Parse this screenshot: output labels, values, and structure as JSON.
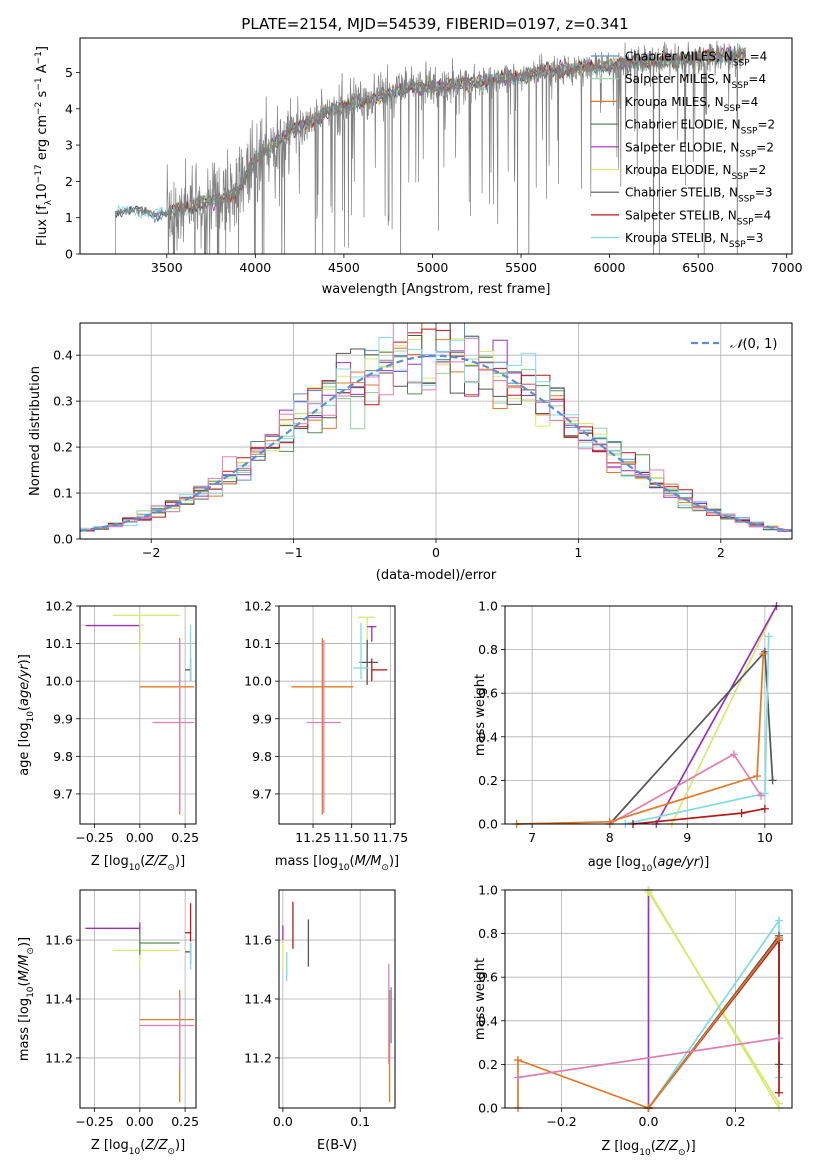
{
  "figure": {
    "title": "PLATE=2154, MJD=54539, FIBERID=0197, z=0.341"
  },
  "colors": {
    "chabrier_miles": "#5b8fd4",
    "salpeter_miles": "#8fd4a0",
    "kroupa_miles": "#e07b2a",
    "chabrier_elodie": "#5a8a5a",
    "salpeter_elodie": "#9b30b8",
    "kroupa_elodie": "#d8e870",
    "chabrier_stelib": "#555555",
    "salpeter_stelib": "#b81818",
    "kroupa_stelib": "#80dce0",
    "pink": "#e080b0",
    "spectrum": "#808080",
    "normal": "#5b8fd4",
    "grid": "#b0b0b0"
  },
  "chart_data": [
    {
      "id": "spectrum",
      "type": "line",
      "xlabel": "wavelength [Angstrom, rest frame]",
      "ylabel": "Flux [f",
      "ylabel_parts": [
        "Flux [f",
        "λ",
        "10",
        "−17",
        " erg cm",
        "−2",
        " s",
        "−1",
        " A",
        "−1",
        "]"
      ],
      "xlim": [
        3010,
        7030
      ],
      "ylim": [
        0,
        5.95
      ],
      "xticks": [
        3500,
        4000,
        4500,
        5000,
        5500,
        6000,
        6500,
        7000
      ],
      "yticks": [
        0,
        1,
        2,
        3,
        4,
        5
      ],
      "grid": false,
      "legend_position": "upper-right",
      "legend": [
        {
          "label": "Chabrier MILES, N",
          "sub": "SSP",
          "suffix": "=4",
          "color_key": "chabrier_miles"
        },
        {
          "label": "Salpeter MILES, N",
          "sub": "SSP",
          "suffix": "=4",
          "color_key": "salpeter_miles"
        },
        {
          "label": "Kroupa MILES, N",
          "sub": "SSP",
          "suffix": "=4",
          "color_key": "kroupa_miles"
        },
        {
          "label": "Chabrier ELODIE, N",
          "sub": "SSP",
          "suffix": "=2",
          "color_key": "chabrier_elodie"
        },
        {
          "label": "Salpeter ELODIE, N",
          "sub": "SSP",
          "suffix": "=2",
          "color_key": "salpeter_elodie"
        },
        {
          "label": "Kroupa ELODIE, N",
          "sub": "SSP",
          "suffix": "=2",
          "color_key": "kroupa_elodie"
        },
        {
          "label": "Chabrier STELIB, N",
          "sub": "SSP",
          "suffix": "=3",
          "color_key": "chabrier_stelib"
        },
        {
          "label": "Salpeter STELIB, N",
          "sub": "SSP",
          "suffix": "=4",
          "color_key": "salpeter_stelib"
        },
        {
          "label": "Kroupa STELIB, N",
          "sub": "SSP",
          "suffix": "=3",
          "color_key": "kroupa_stelib"
        }
      ],
      "continuum": [
        [
          3210,
          1.15
        ],
        [
          3300,
          1.2
        ],
        [
          3400,
          1.15
        ],
        [
          3500,
          1.1
        ],
        [
          3600,
          1.3
        ],
        [
          3700,
          1.4
        ],
        [
          3800,
          1.5
        ],
        [
          3900,
          1.7
        ],
        [
          4000,
          2.6
        ],
        [
          4100,
          3.0
        ],
        [
          4200,
          3.4
        ],
        [
          4300,
          3.6
        ],
        [
          4400,
          3.9
        ],
        [
          4500,
          4.1
        ],
        [
          4600,
          4.2
        ],
        [
          4700,
          4.3
        ],
        [
          4800,
          4.5
        ],
        [
          4900,
          4.6
        ],
        [
          5000,
          4.6
        ],
        [
          5100,
          4.65
        ],
        [
          5200,
          4.7
        ],
        [
          5300,
          4.75
        ],
        [
          5400,
          4.85
        ],
        [
          5500,
          4.9
        ],
        [
          5600,
          5.0
        ],
        [
          5700,
          5.05
        ],
        [
          5800,
          5.1
        ],
        [
          5900,
          5.15
        ],
        [
          6000,
          5.2
        ],
        [
          6100,
          5.25
        ],
        [
          6200,
          5.3
        ],
        [
          6300,
          5.3
        ],
        [
          6400,
          5.35
        ],
        [
          6500,
          5.4
        ],
        [
          6600,
          5.45
        ],
        [
          6700,
          5.5
        ],
        [
          6770,
          5.5
        ]
      ],
      "noise_start": 3500,
      "x_min_data": 3210,
      "x_max_data": 6770
    },
    {
      "id": "residuals",
      "type": "histogram",
      "xlabel": "(data-model)/error",
      "ylabel": "Normed distribution",
      "xlim": [
        -2.5,
        2.5
      ],
      "ylim": [
        0,
        0.47
      ],
      "xticks": [
        -2,
        -1,
        0,
        1,
        2
      ],
      "yticks": [
        0.0,
        0.1,
        0.2,
        0.3,
        0.4
      ],
      "grid": true,
      "legend_position": "upper-right",
      "legend": [
        {
          "label": "(0, 1)",
          "prefix": "𝒩",
          "color_key": "normal",
          "style": "dashed"
        }
      ],
      "bin_width": 0.1,
      "series_color_keys": [
        "chabrier_miles",
        "salpeter_miles",
        "kroupa_miles",
        "chabrier_elodie",
        "salpeter_elodie",
        "kroupa_elodie",
        "chabrier_stelib",
        "salpeter_stelib",
        "kroupa_stelib",
        "pink"
      ]
    },
    {
      "id": "age-vs-z",
      "type": "scatter",
      "xlabel": "Z [log10(Z/Z⊙)]",
      "ylabel": "age  [log10(age/yr)]",
      "xlim": [
        -0.33,
        0.31
      ],
      "ylim": [
        9.62,
        10.2
      ],
      "xticks": [
        -0.25,
        0.0,
        0.25
      ],
      "yticks": [
        9.7,
        9.8,
        9.9,
        10.0,
        10.1,
        10.2
      ],
      "grid": true,
      "points": [
        {
          "x": 0.0,
          "y": 10.148,
          "xerr": [
            0.3,
            0.0
          ],
          "yerr": [
            0.05,
            0.0
          ],
          "color_key": "salpeter_elodie"
        },
        {
          "x": 0.0,
          "y": 10.175,
          "xerr": [
            0.15,
            0.22
          ],
          "yerr": [
            0.1,
            0.0
          ],
          "color_key": "kroupa_elodie"
        },
        {
          "x": 0.22,
          "y": 9.985,
          "xerr": [
            0.22,
            0.08
          ],
          "yerr": [
            0.34,
            0.13
          ],
          "color_key": "kroupa_miles"
        },
        {
          "x": 0.22,
          "y": 9.89,
          "xerr": [
            0.15,
            0.08
          ],
          "yerr": [
            0.24,
            0.22
          ],
          "color_key": "pink"
        },
        {
          "x": 0.28,
          "y": 10.03,
          "xerr": [
            0.03,
            0.0
          ],
          "yerr": [
            0.03,
            0.03
          ],
          "color_key": "chabrier_stelib"
        },
        {
          "x": 0.28,
          "y": 10.03,
          "xerr": [
            0.0,
            0.0
          ],
          "yerr": [
            0.03,
            0.12
          ],
          "color_key": "kroupa_stelib"
        }
      ]
    },
    {
      "id": "age-vs-mass",
      "type": "scatter",
      "xlabel": "mass [log10(M/M⊙)]",
      "ylabel": "",
      "xlim": [
        11.03,
        11.78
      ],
      "ylim": [
        9.62,
        10.2
      ],
      "xticks": [
        11.25,
        11.5,
        11.75
      ],
      "yticks": [
        9.7,
        9.8,
        9.9,
        10.0,
        10.1,
        10.2
      ],
      "grid": true,
      "points": [
        {
          "x": 11.31,
          "y": 9.985,
          "xerr": [
            0.2,
            0.2
          ],
          "yerr": [
            0.34,
            0.13
          ],
          "color_key": "kroupa_miles"
        },
        {
          "x": 11.32,
          "y": 9.89,
          "xerr": [
            0.11,
            0.11
          ],
          "yerr": [
            0.24,
            0.22
          ],
          "color_key": "pink"
        },
        {
          "x": 11.6,
          "y": 10.17,
          "xerr": [
            0.06,
            0.05
          ],
          "yerr": [
            0.1,
            0.0
          ],
          "color_key": "kroupa_elodie"
        },
        {
          "x": 11.63,
          "y": 10.145,
          "xerr": [
            0.03,
            0.03
          ],
          "yerr": [
            0.04,
            0.0
          ],
          "color_key": "salpeter_elodie"
        },
        {
          "x": 11.6,
          "y": 10.05,
          "xerr": [
            0.05,
            0.07
          ],
          "yerr": [
            0.06,
            0.06
          ],
          "color_key": "chabrier_stelib"
        },
        {
          "x": 11.63,
          "y": 10.03,
          "xerr": [
            0.0,
            0.1
          ],
          "yerr": [
            0.03,
            0.03
          ],
          "color_key": "salpeter_stelib"
        },
        {
          "x": 11.56,
          "y": 10.035,
          "xerr": [
            0.05,
            0.05
          ],
          "yerr": [
            0.03,
            0.12
          ],
          "color_key": "kroupa_stelib"
        }
      ]
    },
    {
      "id": "mass-weight-vs-age",
      "type": "line",
      "xlabel": "age  [log10(age/yr)]",
      "ylabel": "mass weight",
      "xlim": [
        6.65,
        10.35
      ],
      "ylim": [
        0,
        1.0
      ],
      "xticks": [
        7,
        8,
        9,
        10
      ],
      "yticks": [
        0.0,
        0.2,
        0.4,
        0.6,
        0.8,
        1.0
      ],
      "grid": true,
      "series": [
        {
          "color_key": "kroupa_elodie",
          "x": [
            8.8,
            10.15
          ],
          "y": [
            0.0,
            1.0
          ]
        },
        {
          "color_key": "salpeter_elodie",
          "x": [
            8.6,
            10.15
          ],
          "y": [
            0.0,
            1.0
          ]
        },
        {
          "color_key": "chabrier_stelib",
          "x": [
            8.0,
            10.0,
            10.1
          ],
          "y": [
            0.0,
            0.79,
            0.2
          ]
        },
        {
          "color_key": "kroupa_stelib",
          "x": [
            8.2,
            10.0,
            10.05
          ],
          "y": [
            0.0,
            0.14,
            0.86
          ]
        },
        {
          "color_key": "pink",
          "x": [
            8.0,
            9.6,
            9.95
          ],
          "y": [
            0.0,
            0.32,
            0.13
          ]
        },
        {
          "color_key": "kroupa_miles",
          "x": [
            6.8,
            8.0,
            9.9,
            9.98
          ],
          "y": [
            0.0,
            0.01,
            0.22,
            0.78
          ]
        },
        {
          "color_key": "salpeter_stelib",
          "x": [
            8.3,
            9.7,
            10.0
          ],
          "y": [
            0.0,
            0.05,
            0.07
          ]
        }
      ]
    },
    {
      "id": "mass-vs-z",
      "type": "scatter",
      "xlabel": "Z [log10(Z/Z⊙)]",
      "ylabel": "mass [log10(M/M⊙)]",
      "xlim": [
        -0.33,
        0.31
      ],
      "ylim": [
        11.03,
        11.77
      ],
      "xticks": [
        -0.25,
        0.0,
        0.25
      ],
      "yticks": [
        11.2,
        11.4,
        11.6
      ],
      "grid": true,
      "points": [
        {
          "x": 0.0,
          "y": 11.64,
          "xerr": [
            0.3,
            0.0
          ],
          "yerr": [
            0.02,
            0.02
          ],
          "color_key": "salpeter_elodie"
        },
        {
          "x": 0.0,
          "y": 11.565,
          "xerr": [
            0.15,
            0.22
          ],
          "yerr": [
            0.06,
            0.06
          ],
          "color_key": "kroupa_elodie"
        },
        {
          "x": 0.0,
          "y": 11.59,
          "xerr": [
            0.0,
            0.22
          ],
          "yerr": [
            0.04,
            0.04
          ],
          "color_key": "chabrier_elodie"
        },
        {
          "x": 0.22,
          "y": 11.33,
          "xerr": [
            0.22,
            0.08
          ],
          "yerr": [
            0.28,
            0.1
          ],
          "color_key": "kroupa_miles"
        },
        {
          "x": 0.22,
          "y": 11.31,
          "xerr": [
            0.22,
            0.08
          ],
          "yerr": [
            0.15,
            0.1
          ],
          "color_key": "pink"
        },
        {
          "x": 0.28,
          "y": 11.625,
          "xerr": [
            0.03,
            0.0
          ],
          "yerr": [
            0.03,
            0.1
          ],
          "color_key": "salpeter_stelib"
        },
        {
          "x": 0.28,
          "y": 11.56,
          "xerr": [
            0.03,
            0.0
          ],
          "yerr": [
            0.04,
            0.03
          ],
          "color_key": "chabrier_stelib"
        },
        {
          "x": 0.28,
          "y": 11.55,
          "xerr": [
            0.0,
            0.0
          ],
          "yerr": [
            0.05,
            0.04
          ],
          "color_key": "kroupa_stelib"
        }
      ]
    },
    {
      "id": "mass-vs-ebv",
      "type": "scatter",
      "xlabel": "E(B-V)",
      "ylabel": "",
      "xlim": [
        -0.005,
        0.145
      ],
      "ylim": [
        11.03,
        11.77
      ],
      "xticks": [
        0.0,
        0.1
      ],
      "yticks": [
        11.2,
        11.4,
        11.6
      ],
      "grid": true,
      "points": [
        {
          "x": 0.0,
          "y": 11.62,
          "xerr": [
            0,
            0
          ],
          "yerr": [
            0.03,
            0.03
          ],
          "color_key": "salpeter_elodie"
        },
        {
          "x": 0.0,
          "y": 11.55,
          "xerr": [
            0,
            0
          ],
          "yerr": [
            0.05,
            0.05
          ],
          "color_key": "kroupa_elodie"
        },
        {
          "x": 0.005,
          "y": 11.51,
          "xerr": [
            0,
            0
          ],
          "yerr": [
            0.05,
            0.05
          ],
          "color_key": "kroupa_stelib"
        },
        {
          "x": 0.013,
          "y": 11.65,
          "xerr": [
            0,
            0
          ],
          "yerr": [
            0.08,
            0.08
          ],
          "color_key": "salpeter_stelib"
        },
        {
          "x": 0.033,
          "y": 11.59,
          "xerr": [
            0,
            0
          ],
          "yerr": [
            0.08,
            0.08
          ],
          "color_key": "chabrier_stelib"
        },
        {
          "x": 0.138,
          "y": 11.33,
          "xerr": [
            0,
            0
          ],
          "yerr": [
            0.28,
            0.1
          ],
          "color_key": "kroupa_miles"
        },
        {
          "x": 0.137,
          "y": 11.35,
          "xerr": [
            0,
            0
          ],
          "yerr": [
            0.17,
            0.17
          ],
          "color_key": "pink"
        },
        {
          "x": 0.14,
          "y": 11.35,
          "xerr": [
            0,
            0
          ],
          "yerr": [
            0.1,
            0.09
          ],
          "color_key": "chabrier_miles"
        }
      ]
    },
    {
      "id": "mass-weight-vs-z",
      "type": "line",
      "xlabel": "Z [log10(Z/Z⊙)]",
      "ylabel": "mass weight",
      "xlim": [
        -0.33,
        0.33
      ],
      "ylim": [
        0,
        1.0
      ],
      "xticks": [
        -0.2,
        0.0,
        0.2
      ],
      "yticks": [
        0.0,
        0.2,
        0.4,
        0.6,
        0.8,
        1.0
      ],
      "grid": true,
      "series": [
        {
          "color_key": "salpeter_elodie",
          "x": [
            0.0,
            0.0
          ],
          "y": [
            0.0,
            1.0
          ]
        },
        {
          "color_key": "kroupa_elodie",
          "x": [
            0.0,
            0.3
          ],
          "y": [
            1.0,
            0.0
          ]
        },
        {
          "color_key": "kroupa_elodie",
          "x": [
            0.0,
            0.3
          ],
          "y": [
            0.99,
            0.02
          ]
        },
        {
          "color_key": "kroupa_stelib",
          "x": [
            0.0,
            0.3,
            0.3
          ],
          "y": [
            0.0,
            0.86,
            0.14
          ]
        },
        {
          "color_key": "chabrier_stelib",
          "x": [
            0.0,
            0.3,
            0.3
          ],
          "y": [
            0.0,
            0.79,
            0.2
          ]
        },
        {
          "color_key": "salpeter_stelib",
          "x": [
            0.0,
            0.3,
            0.3
          ],
          "y": [
            0.0,
            0.77,
            0.07
          ]
        },
        {
          "color_key": "kroupa_miles",
          "x": [
            -0.3,
            -0.3,
            0.0,
            0.3
          ],
          "y": [
            0.0,
            0.22,
            0.0,
            0.78
          ]
        },
        {
          "color_key": "pink",
          "x": [
            -0.3,
            0.3
          ],
          "y": [
            0.14,
            0.32
          ]
        }
      ]
    }
  ]
}
